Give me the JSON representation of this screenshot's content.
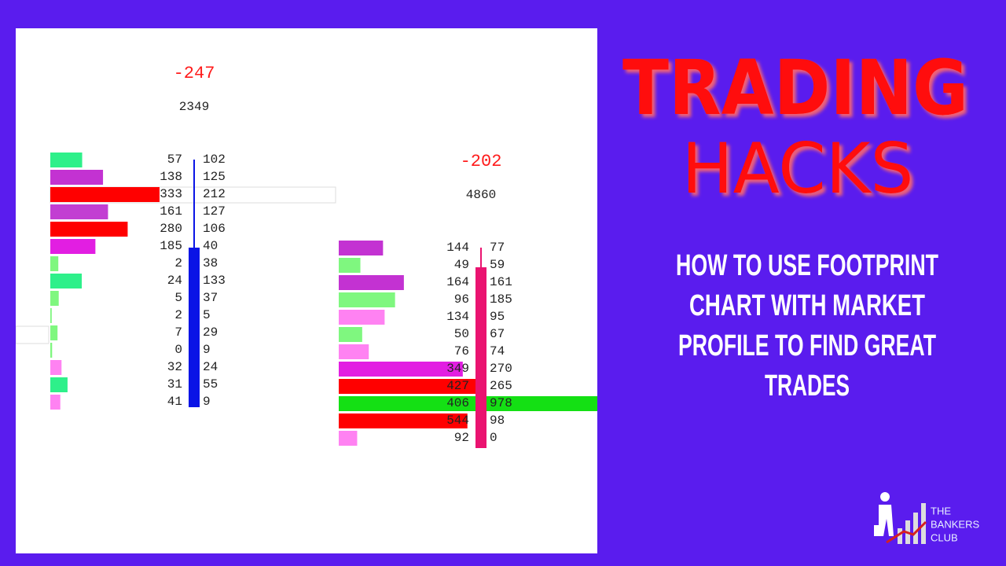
{
  "footprint": {
    "candles": [
      {
        "delta": "-247",
        "volume": "2349",
        "rows": [
          {
            "bid": 57,
            "ask": 102,
            "color": "#2ef08a"
          },
          {
            "bid": 138,
            "ask": 125,
            "color": "#c332d2"
          },
          {
            "bid": 333,
            "ask": 212,
            "color": "#ff0000"
          },
          {
            "bid": 161,
            "ask": 127,
            "color": "#c23ed2"
          },
          {
            "bid": 280,
            "ask": 106,
            "color": "#ff0000"
          },
          {
            "bid": 185,
            "ask": 40,
            "color": "#e21ee2"
          },
          {
            "bid": 2,
            "ask": 38,
            "color": "#7ff77f"
          },
          {
            "bid": 24,
            "ask": 133,
            "color": "#2ef08a"
          },
          {
            "bid": 5,
            "ask": 37,
            "color": "#7ff77f"
          },
          {
            "bid": 2,
            "ask": 5,
            "color": "#7ff77f"
          },
          {
            "bid": 7,
            "ask": 29,
            "color": "#7ff77f"
          },
          {
            "bid": 0,
            "ask": 9,
            "color": "#7ff77f"
          },
          {
            "bid": 32,
            "ask": 24,
            "color": "#ff82f2"
          },
          {
            "bid": 31,
            "ask": 55,
            "color": "#2ef08a"
          },
          {
            "bid": 41,
            "ask": 9,
            "color": "#ff82f2"
          }
        ]
      },
      {
        "delta": "-202",
        "volume": "4860",
        "rows": [
          {
            "bid": 144,
            "ask": 77,
            "color": "#c332d2"
          },
          {
            "bid": 49,
            "ask": 59,
            "color": "#7ff77f"
          },
          {
            "bid": 164,
            "ask": 161,
            "color": "#c332d2"
          },
          {
            "bid": 96,
            "ask": 185,
            "color": "#7ff77f"
          },
          {
            "bid": 134,
            "ask": 95,
            "color": "#ff82f2"
          },
          {
            "bid": 50,
            "ask": 67,
            "color": "#7ff77f"
          },
          {
            "bid": 76,
            "ask": 74,
            "color": "#ff82f2"
          },
          {
            "bid": 349,
            "ask": 270,
            "color": "#e21ee2"
          },
          {
            "bid": 427,
            "ask": 265,
            "color": "#ff0000"
          },
          {
            "bid": 406,
            "ask": 978,
            "color": "#14e014"
          },
          {
            "bid": 544,
            "ask": 98,
            "color": "#ff0000"
          },
          {
            "bid": 92,
            "ask": 0,
            "color": "#ff82f2"
          }
        ]
      }
    ]
  },
  "title": {
    "line1": "TRADING",
    "line2": "HACKS"
  },
  "subtitle": [
    "HOW TO USE FOOTPRINT",
    "CHART WITH MARKET",
    "PROFILE TO FIND GREAT",
    "TRADES"
  ],
  "logo": [
    "THE",
    "BANKERS",
    "CLUB"
  ]
}
